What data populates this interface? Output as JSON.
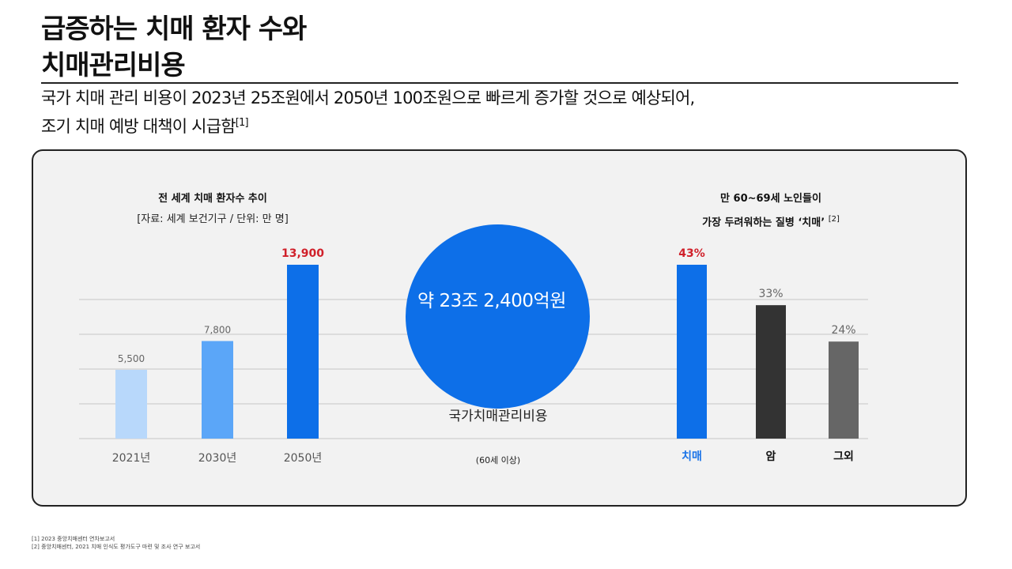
{
  "title": {
    "line1": "급증하는 치매 환자 수와",
    "line2": "치매관리비용"
  },
  "subtitle": {
    "line1": "국가 치매 관리 비용이 2023년 25조원에서 2050년 100조원으로 빠르게 증가할 것으로 예상되어,",
    "line2": "조기 치매 예방 대책이 시급함",
    "ref": "[1]"
  },
  "left_chart": {
    "heading": "전 세계 치매 환자수 추이",
    "source": "[자료: 세계 보건기구 / 단위: 만 명]"
  },
  "right_chart": {
    "heading_line1": "만 60~69세 노인들이",
    "heading_line2": "가장 두려워하는 질병 ‘치매’",
    "ref": "[2]"
  },
  "circle": {
    "value": "약 23조 2,400억원",
    "label": "국가치매관리비용",
    "sublabel": "(60세 이상)"
  },
  "chart_data": [
    {
      "type": "bar",
      "title": "전 세계 치매 환자수 추이",
      "categories": [
        "2021년",
        "2030년",
        "2050년"
      ],
      "values": [
        5500,
        7800,
        13900
      ],
      "value_labels": [
        "5,500",
        "7,800",
        "13,900"
      ],
      "colors": [
        "#b8d8fb",
        "#5ba6f8",
        "#0d6fe8"
      ],
      "highlight_label_color": "#d0202a",
      "ylim": [
        0,
        13900
      ],
      "grid": true
    },
    {
      "type": "bar",
      "title": "만 60~69세 노인들이 가장 두려워하는 질병 ‘치매’",
      "categories": [
        "치매",
        "암",
        "그외"
      ],
      "values": [
        43,
        33,
        24
      ],
      "value_labels": [
        "43%",
        "33%",
        "24%"
      ],
      "colors": [
        "#0d6fe8",
        "#333333",
        "#666666"
      ],
      "highlight_label_color": "#d0202a",
      "highlight_category_color": "#1a73e8",
      "ylim": [
        0,
        43
      ],
      "grid": true
    }
  ],
  "footnotes": {
    "f1": "[1] 2023 중앙치매센터 연차보고서",
    "f2": "[2] 중앙치매센터, 2021 치매 인식도 평가도구 마련 및 조사 연구 보고서"
  }
}
